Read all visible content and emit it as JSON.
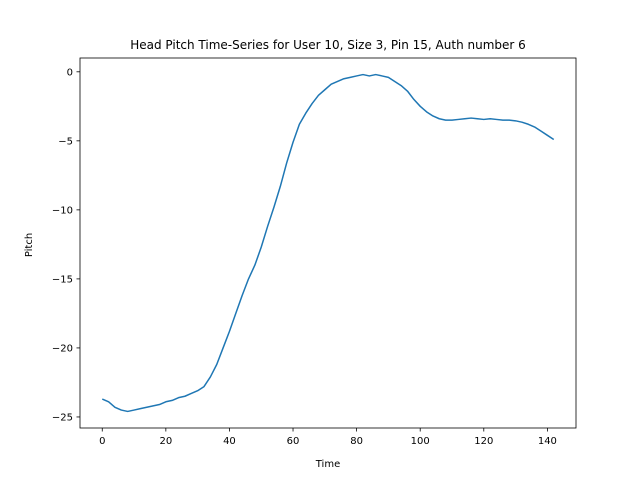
{
  "chart_data": {
    "type": "line",
    "title": "Head Pitch Time-Series for User 10, Size 3, Pin 15, Auth number 6",
    "xlabel": "Time",
    "ylabel": "Pitch",
    "xlim": [
      -7,
      149
    ],
    "ylim": [
      -25.8,
      1
    ],
    "xticks": [
      0,
      20,
      40,
      60,
      80,
      100,
      120,
      140
    ],
    "yticks": [
      0,
      -5,
      -10,
      -15,
      -20,
      -25
    ],
    "grid": false,
    "color": "#1f77b4",
    "series": [
      {
        "x": [
          0,
          2,
          4,
          6,
          8,
          10,
          12,
          14,
          16,
          18,
          20,
          22,
          24,
          26,
          28,
          30,
          32,
          34,
          36,
          38,
          40,
          42,
          44,
          46,
          48,
          50,
          52,
          54,
          56,
          58,
          60,
          62,
          64,
          66,
          68,
          70,
          72,
          74,
          76,
          78,
          80,
          82,
          84,
          86,
          88,
          90,
          92,
          94,
          96,
          98,
          100,
          102,
          104,
          106,
          108,
          110,
          112,
          114,
          116,
          118,
          120,
          122,
          124,
          126,
          128,
          130,
          132,
          134,
          136,
          138,
          140,
          142
        ],
        "y": [
          -23.7,
          -23.9,
          -24.3,
          -24.5,
          -24.6,
          -24.5,
          -24.4,
          -24.3,
          -24.2,
          -24.1,
          -23.9,
          -23.8,
          -23.6,
          -23.5,
          -23.3,
          -23.1,
          -22.8,
          -22.1,
          -21.2,
          -20.0,
          -18.8,
          -17.5,
          -16.2,
          -15.0,
          -14.0,
          -12.7,
          -11.2,
          -9.8,
          -8.3,
          -6.6,
          -5.1,
          -3.8,
          -3.0,
          -2.3,
          -1.7,
          -1.3,
          -0.9,
          -0.7,
          -0.5,
          -0.4,
          -0.3,
          -0.2,
          -0.3,
          -0.2,
          -0.3,
          -0.4,
          -0.7,
          -1.0,
          -1.4,
          -2.0,
          -2.5,
          -2.9,
          -3.2,
          -3.4,
          -3.5,
          -3.5,
          -3.45,
          -3.4,
          -3.35,
          -3.4,
          -3.45,
          -3.4,
          -3.45,
          -3.5,
          -3.5,
          -3.55,
          -3.65,
          -3.8,
          -4.0,
          -4.3,
          -4.6,
          -4.9
        ]
      }
    ]
  }
}
